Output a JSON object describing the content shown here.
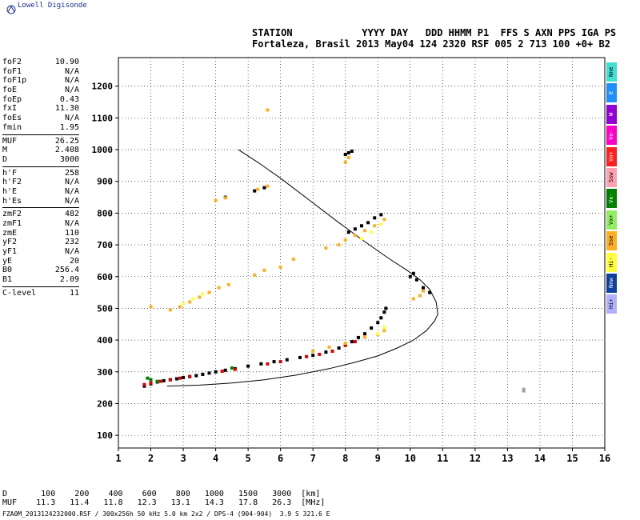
{
  "brand": "Lowell Digisonde",
  "header": {
    "line1": "STATION            YYYY DAY   DDD HHMM P1  FFS S AXN PPS IGA PS",
    "line2": "Fortaleza, Brasil 2013 May04 124 2320 RSF 005 2 713 100 +0+ B2"
  },
  "params_group1": [
    {
      "name": "foF2",
      "value": "10.90"
    },
    {
      "name": "foF1",
      "value": "N/A"
    },
    {
      "name": "foF1p",
      "value": "N/A"
    },
    {
      "name": "foE",
      "value": "N/A"
    },
    {
      "name": "foEp",
      "value": "0.43"
    },
    {
      "name": "fxI",
      "value": "11.30"
    },
    {
      "name": "foEs",
      "value": "N/A"
    },
    {
      "name": "fmin",
      "value": "1.95"
    }
  ],
  "params_group2": [
    {
      "name": "MUF",
      "value": "26.25"
    },
    {
      "name": "M",
      "value": "2.408"
    },
    {
      "name": "D",
      "value": "3000"
    }
  ],
  "params_group3": [
    {
      "name": "h'F",
      "value": "258"
    },
    {
      "name": "h'F2",
      "value": "N/A"
    },
    {
      "name": "h'E",
      "value": "N/A"
    },
    {
      "name": "h'Es",
      "value": "N/A"
    }
  ],
  "params_group4": [
    {
      "name": "zmF2",
      "value": "482"
    },
    {
      "name": "zmF1",
      "value": "N/A"
    },
    {
      "name": "zmE",
      "value": "110"
    },
    {
      "name": "yF2",
      "value": "232"
    },
    {
      "name": "yF1",
      "value": "N/A"
    },
    {
      "name": "yE",
      "value": "20"
    },
    {
      "name": "B0",
      "value": "256.4"
    },
    {
      "name": "B1",
      "value": "2.09"
    }
  ],
  "params_group5": [
    {
      "name": "C-level",
      "value": "11"
    }
  ],
  "modes": [
    {
      "label": "Nne",
      "color": "#40e0d0"
    },
    {
      "label": "E",
      "color": "#1e90ff"
    },
    {
      "label": "W",
      "color": "#9400d3"
    },
    {
      "label": "Vo-",
      "color": "#ff00c8"
    },
    {
      "label": "Vo+",
      "color": "#ff2020"
    },
    {
      "label": "Ssw",
      "color": "#ffa0b0"
    },
    {
      "label": "Vx-",
      "color": "#008000"
    },
    {
      "label": "Vx+",
      "color": "#90ee60"
    },
    {
      "label": "Sse",
      "color": "#ffb020"
    },
    {
      "label": "Hi-",
      "color": "#ffff40"
    },
    {
      "label": "Nnw",
      "color": "#1040a0"
    },
    {
      "label": "Hi+",
      "color": "#b0b0ff"
    }
  ],
  "muf_table": {
    "d_label": "D",
    "d_values": [
      "100",
      "200",
      "400",
      "600",
      "800",
      "1000",
      "1500",
      "3000"
    ],
    "d_unit": "[km]",
    "muf_label": "MUF",
    "muf_values": [
      "11.3",
      "11.4",
      "11.8",
      "12.3",
      "13.1",
      "14.3",
      "17.8",
      "26.3"
    ],
    "muf_unit": "[MHz]"
  },
  "footer": "FZA0M_2013124232000.RSF / 300x256h 50 kHz 5.0 km 2x2 / DPS-4 (904-904)  3.9 S 321.6 E",
  "chart_data": {
    "type": "scatter",
    "x_ticks": [
      1,
      2,
      3,
      4,
      5,
      6,
      7,
      8,
      9,
      10,
      11,
      12,
      13,
      14,
      15,
      16
    ],
    "y_ticks": [
      100,
      200,
      300,
      400,
      500,
      600,
      700,
      800,
      900,
      1000,
      1100,
      1200
    ],
    "xlim": [
      1,
      16
    ],
    "ylim": [
      60,
      1290
    ],
    "grid": "dotted",
    "series": [
      {
        "color": "#000000",
        "points": [
          [
            1.8,
            255
          ],
          [
            2.0,
            262
          ],
          [
            2.2,
            268
          ],
          [
            2.4,
            272
          ],
          [
            2.6,
            275
          ],
          [
            2.8,
            278
          ],
          [
            3.0,
            282
          ],
          [
            3.2,
            285
          ],
          [
            3.4,
            288
          ],
          [
            3.6,
            292
          ],
          [
            3.8,
            296
          ],
          [
            4.0,
            300
          ],
          [
            4.3,
            305
          ],
          [
            4.6,
            310
          ],
          [
            5.0,
            318
          ],
          [
            5.4,
            325
          ],
          [
            5.8,
            332
          ],
          [
            6.2,
            338
          ],
          [
            6.6,
            345
          ],
          [
            7.0,
            352
          ],
          [
            7.4,
            362
          ],
          [
            7.8,
            375
          ],
          [
            8.0,
            385
          ],
          [
            8.2,
            395
          ],
          [
            8.4,
            408
          ],
          [
            8.6,
            420
          ],
          [
            8.8,
            438
          ],
          [
            9.0,
            455
          ],
          [
            9.1,
            470
          ],
          [
            9.2,
            488
          ],
          [
            9.25,
            500
          ],
          [
            8.1,
            740
          ],
          [
            8.3,
            750
          ],
          [
            8.5,
            760
          ],
          [
            8.7,
            770
          ],
          [
            8.9,
            785
          ],
          [
            9.1,
            795
          ],
          [
            8.0,
            985
          ],
          [
            8.1,
            990
          ],
          [
            8.2,
            995
          ],
          [
            4.3,
            850
          ],
          [
            5.2,
            870
          ],
          [
            5.5,
            880
          ],
          [
            10.0,
            600
          ],
          [
            10.1,
            610
          ],
          [
            10.2,
            590
          ],
          [
            10.4,
            565
          ],
          [
            10.6,
            550
          ]
        ]
      },
      {
        "color": "#e00000",
        "points": [
          [
            1.8,
            260
          ],
          [
            2.0,
            265
          ],
          [
            2.3,
            270
          ],
          [
            2.6,
            275
          ],
          [
            2.9,
            280
          ],
          [
            3.2,
            285
          ],
          [
            4.2,
            302
          ],
          [
            4.6,
            308
          ],
          [
            5.6,
            325
          ],
          [
            6.0,
            332
          ],
          [
            6.8,
            348
          ],
          [
            7.2,
            355
          ],
          [
            7.6,
            365
          ],
          [
            8.0,
            383
          ],
          [
            8.3,
            395
          ],
          [
            8.6,
            410
          ]
        ]
      },
      {
        "color": "#ffb020",
        "points": [
          [
            2.6,
            495
          ],
          [
            2.9,
            505
          ],
          [
            3.2,
            520
          ],
          [
            3.5,
            535
          ],
          [
            3.8,
            550
          ],
          [
            4.1,
            565
          ],
          [
            4.4,
            575
          ],
          [
            5.2,
            605
          ],
          [
            5.5,
            620
          ],
          [
            6.0,
            630
          ],
          [
            6.4,
            655
          ],
          [
            7.4,
            690
          ],
          [
            7.8,
            700
          ],
          [
            8.0,
            715
          ],
          [
            8.3,
            730
          ],
          [
            8.6,
            745
          ],
          [
            8.9,
            760
          ],
          [
            9.2,
            780
          ],
          [
            4.0,
            840
          ],
          [
            4.3,
            848
          ],
          [
            5.3,
            875
          ],
          [
            5.6,
            885
          ],
          [
            8.0,
            960
          ],
          [
            8.1,
            975
          ],
          [
            5.6,
            1125
          ],
          [
            10.1,
            530
          ],
          [
            10.3,
            540
          ],
          [
            10.4,
            555
          ],
          [
            7.0,
            365
          ],
          [
            7.5,
            378
          ],
          [
            8.0,
            390
          ],
          [
            8.6,
            410
          ],
          [
            9.0,
            418
          ],
          [
            9.2,
            430
          ],
          [
            2.0,
            505
          ]
        ]
      },
      {
        "color": "#ffff40",
        "points": [
          [
            3.0,
            515
          ],
          [
            3.3,
            530
          ],
          [
            3.6,
            545
          ],
          [
            8.5,
            720
          ],
          [
            8.8,
            740
          ],
          [
            9.1,
            765
          ],
          [
            9.0,
            420
          ],
          [
            9.2,
            440
          ]
        ]
      },
      {
        "color": "#008000",
        "points": [
          [
            2.0,
            275
          ],
          [
            2.2,
            270
          ],
          [
            4.5,
            312
          ],
          [
            1.9,
            280
          ]
        ]
      },
      {
        "color": "#a0a0a0",
        "points": [
          [
            13.5,
            240
          ],
          [
            13.5,
            245
          ]
        ]
      }
    ],
    "curves": [
      {
        "name": "profile",
        "points": [
          [
            2.5,
            255
          ],
          [
            3.5,
            258
          ],
          [
            4.5,
            265
          ],
          [
            5.5,
            275
          ],
          [
            6.5,
            290
          ],
          [
            7.5,
            310
          ],
          [
            8.3,
            330
          ],
          [
            9.0,
            350
          ],
          [
            9.6,
            375
          ],
          [
            10.1,
            400
          ],
          [
            10.5,
            430
          ],
          [
            10.75,
            460
          ],
          [
            10.85,
            482
          ],
          [
            10.8,
            520
          ],
          [
            10.6,
            560
          ],
          [
            10.3,
            590
          ],
          [
            9.9,
            620
          ],
          [
            9.3,
            660
          ],
          [
            8.6,
            710
          ],
          [
            7.8,
            770
          ],
          [
            6.9,
            840
          ],
          [
            6.0,
            910
          ],
          [
            5.3,
            960
          ],
          [
            4.7,
            1000
          ]
        ]
      }
    ]
  }
}
